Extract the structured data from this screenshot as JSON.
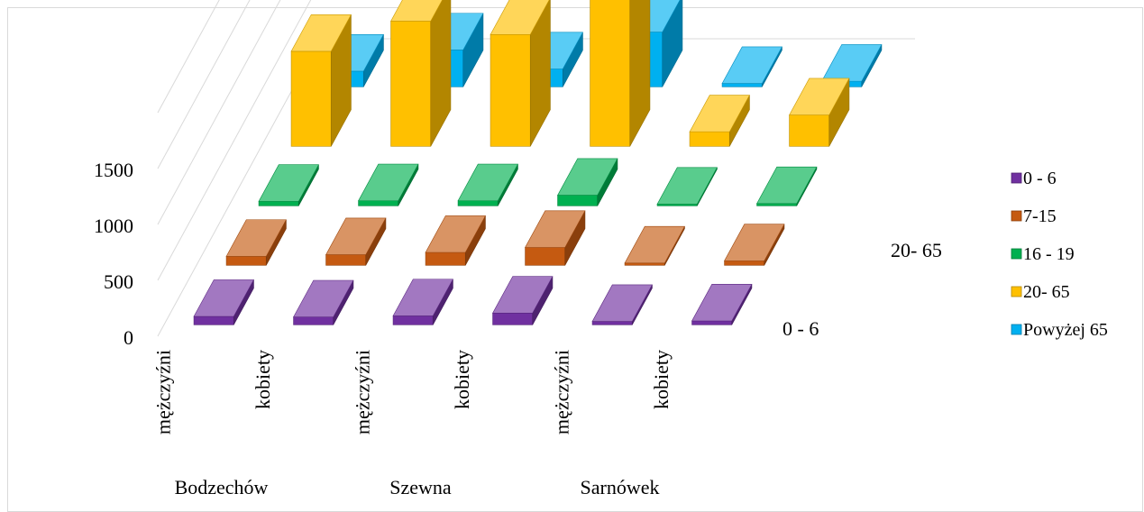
{
  "chart_data": {
    "type": "bar",
    "subtype": "3d-column",
    "title": "",
    "xlabel": "",
    "ylabel": "",
    "ylim": [
      0,
      1500
    ],
    "yticks": [
      0,
      500,
      1000,
      1500
    ],
    "grid": true,
    "legend": "right",
    "groups": [
      "Bodzechów",
      "Szewna",
      "Sarnówek"
    ],
    "categories": [
      "mężczyźni",
      "kobiety",
      "mężczyźni",
      "kobiety",
      "mężczyźni",
      "kobiety"
    ],
    "depth_labels": [
      "0 - 6",
      "20- 65"
    ],
    "series": [
      {
        "name": "0 - 6",
        "color": "#7030a0",
        "values": [
          75,
          70,
          80,
          105,
          30,
          35
        ]
      },
      {
        "name": "7-15",
        "color": "#c55a11",
        "values": [
          80,
          95,
          115,
          160,
          20,
          40
        ]
      },
      {
        "name": "16 - 19",
        "color": "#00b050",
        "values": [
          40,
          45,
          45,
          95,
          15,
          20
        ]
      },
      {
        "name": "20- 65",
        "color": "#ffc000",
        "values": [
          850,
          1120,
          1000,
          1330,
          130,
          280
        ]
      },
      {
        "name": "Powyżej 65",
        "color": "#00b0f0",
        "values": [
          140,
          330,
          160,
          490,
          30,
          50
        ]
      }
    ]
  }
}
